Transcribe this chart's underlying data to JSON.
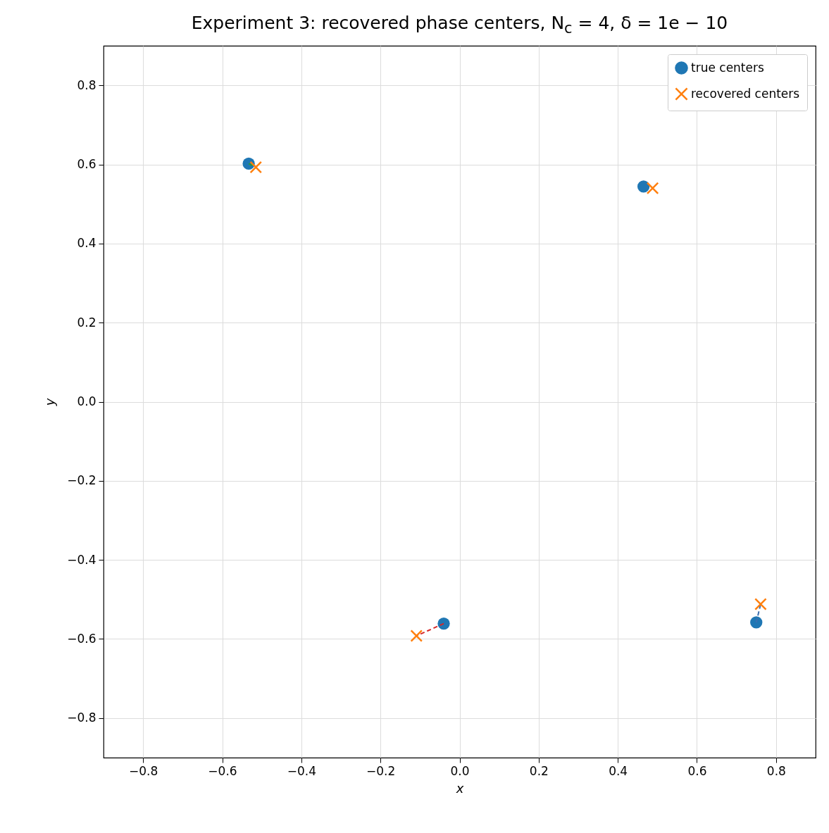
{
  "chart_data": {
    "type": "scatter",
    "title": "Experiment 3: recovered phase centers, N$_{c}$ = 4, δ = 1e − 10",
    "xlabel": "x",
    "ylabel": "y",
    "xlim": [
      -0.9,
      0.9
    ],
    "ylim": [
      -0.9,
      0.9
    ],
    "xticks": [
      {
        "value": -0.8,
        "label": "−0.8"
      },
      {
        "value": -0.6,
        "label": "−0.6"
      },
      {
        "value": -0.4,
        "label": "−0.4"
      },
      {
        "value": -0.2,
        "label": "−0.2"
      },
      {
        "value": 0,
        "label": "0.0"
      },
      {
        "value": 0.2,
        "label": "0.2"
      },
      {
        "value": 0.4,
        "label": "0.4"
      },
      {
        "value": 0.6,
        "label": "0.6"
      },
      {
        "value": 0.8,
        "label": "0.8"
      }
    ],
    "yticks": [
      {
        "value": -0.8,
        "label": "−0.8"
      },
      {
        "value": -0.6,
        "label": "−0.6"
      },
      {
        "value": -0.4,
        "label": "−0.4"
      },
      {
        "value": -0.2,
        "label": "−0.2"
      },
      {
        "value": 0,
        "label": "0.0"
      },
      {
        "value": 0.2,
        "label": "0.2"
      },
      {
        "value": 0.4,
        "label": "0.4"
      },
      {
        "value": 0.6,
        "label": "0.6"
      },
      {
        "value": 0.8,
        "label": "0.8"
      }
    ],
    "grid": true,
    "legend": "top right",
    "series": [
      {
        "name": "true centers",
        "marker": "circle",
        "color": "#1f77b4",
        "x": [
          -0.533,
          0.465,
          -0.04,
          0.75
        ],
        "values": [
          0.602,
          0.544,
          -0.561,
          -0.558
        ]
      },
      {
        "type": "line",
        "line_style": "dashed",
        "marker": "none",
        "color": "#2ca02c",
        "x": [
          -0.533,
          -0.515
        ],
        "values": [
          0.602,
          0.593
        ]
      },
      {
        "type": "line",
        "line_style": "dashed",
        "marker": "none",
        "color": "#d62728",
        "x": [
          -0.04,
          -0.109
        ],
        "values": [
          -0.561,
          -0.592
        ]
      },
      {
        "type": "line",
        "line_style": "dashed",
        "marker": "none",
        "color": "#3b6fb0",
        "x": [
          0.75,
          0.761
        ],
        "values": [
          -0.558,
          -0.512
        ]
      },
      {
        "name": "recovered centers",
        "marker": "cross",
        "color": "#ff7f0e",
        "x": [
          -0.515,
          0.488,
          -0.109,
          0.761
        ],
        "values": [
          0.593,
          0.54,
          -0.592,
          -0.512
        ]
      }
    ]
  }
}
